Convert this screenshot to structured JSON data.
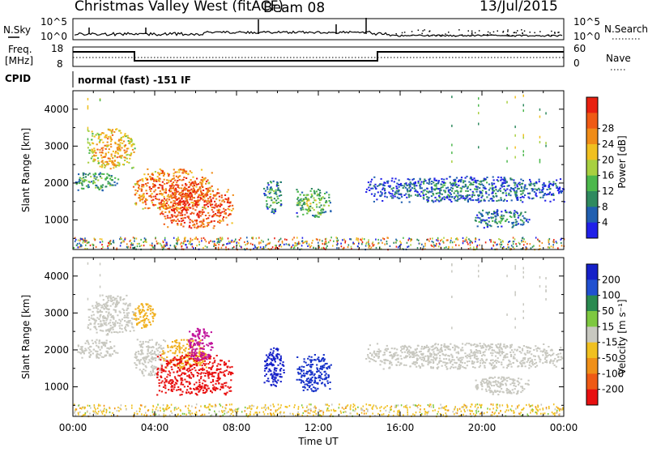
{
  "header": {
    "station": "Christmas Valley West (fitACF)",
    "beam": "Beam 08",
    "date": "13/Jul/2015"
  },
  "noise_panel": {
    "left_label": "N.Sky",
    "right_label": "N.Search",
    "left_ticks": [
      "10^5",
      "10^0"
    ],
    "right_ticks": [
      "10^5",
      "10^0"
    ]
  },
  "freq_panel": {
    "left_label_top": "Freq.",
    "left_label_bottom": "[MHz]",
    "left_ticks": [
      "18",
      "8"
    ],
    "right_label": "Nave",
    "right_ticks": [
      "60",
      "0"
    ]
  },
  "cpid_panel": {
    "label": "CPID",
    "text": "normal (fast) -151 IF"
  },
  "chart_data": [
    {
      "type": "heatmap",
      "quantity": "power",
      "ylabel": "Slant Range [km]",
      "ylim": [
        200,
        4500
      ],
      "yticks": [
        "1000",
        "2000",
        "3000",
        "4000"
      ],
      "xlim_hours": [
        0,
        24
      ],
      "colorbar_label": "Power [dB]",
      "colorbar_ticks": [
        "4",
        "8",
        "12",
        "16",
        "20",
        "24",
        "28"
      ],
      "colorbar_colors": [
        "#2020e8",
        "#205fb0",
        "#2f8a5f",
        "#4cb84c",
        "#a8d040",
        "#f0c020",
        "#f08c18",
        "#ef5a14",
        "#e82010"
      ],
      "echo_regions": [
        {
          "t0": 0.7,
          "t1": 3.0,
          "r0": 2400,
          "r1": 3500,
          "level": 0.55
        },
        {
          "t0": 0.1,
          "t1": 2.2,
          "r0": 1800,
          "r1": 2300,
          "level": 0.25
        },
        {
          "t0": 2.9,
          "t1": 6.8,
          "r0": 1300,
          "r1": 2400,
          "level": 0.7
        },
        {
          "t0": 4.2,
          "t1": 7.8,
          "r0": 800,
          "r1": 1900,
          "level": 0.8
        },
        {
          "t0": 9.3,
          "t1": 10.2,
          "r0": 1200,
          "r1": 2100,
          "level": 0.2
        },
        {
          "t0": 10.9,
          "t1": 12.6,
          "r0": 1100,
          "r1": 1900,
          "level": 0.3
        },
        {
          "t0": 14.3,
          "t1": 24.0,
          "r0": 1500,
          "r1": 2200,
          "level": 0.1
        },
        {
          "t0": 19.6,
          "t1": 22.3,
          "r0": 800,
          "r1": 1300,
          "level": 0.15
        }
      ]
    },
    {
      "type": "heatmap",
      "quantity": "velocity",
      "ylabel": "Slant Range [km]",
      "ylim": [
        200,
        4500
      ],
      "yticks": [
        "1000",
        "2000",
        "3000",
        "4000"
      ],
      "xlabel": "Time UT",
      "xlim_hours": [
        0,
        24
      ],
      "xticks": [
        "00:00",
        "04:00",
        "08:00",
        "12:00",
        "16:00",
        "20:00",
        "00:00"
      ],
      "colorbar_label": "Velocity [m s⁻¹]",
      "colorbar_ticks": [
        "200",
        "100",
        "50",
        "15",
        "-15",
        "-50",
        "-100",
        "-200"
      ],
      "colorbar_colors": [
        "#1520c8",
        "#2050d0",
        "#2a8a50",
        "#7ec840",
        "#c8c8c0",
        "#f0c020",
        "#f09018",
        "#ef5a14",
        "#e81010"
      ],
      "echo_regions": [
        {
          "t0": 0.7,
          "t1": 3.0,
          "r0": 2400,
          "r1": 3500,
          "color": "#c8c8c0"
        },
        {
          "t0": 0.1,
          "t1": 2.2,
          "r0": 1800,
          "r1": 2300,
          "color": "#c8c8c0"
        },
        {
          "t0": 2.9,
          "t1": 4.0,
          "r0": 2600,
          "r1": 3300,
          "color": "#f0b020"
        },
        {
          "t0": 2.9,
          "t1": 4.5,
          "r0": 1300,
          "r1": 2300,
          "color": "#c8c8c0"
        },
        {
          "t0": 4.3,
          "t1": 6.5,
          "r0": 1500,
          "r1": 2300,
          "color": "#f0b020"
        },
        {
          "t0": 4.0,
          "t1": 7.8,
          "r0": 800,
          "r1": 1900,
          "color": "#e81010"
        },
        {
          "t0": 5.6,
          "t1": 6.8,
          "r0": 1700,
          "r1": 2600,
          "color": "#c0109a"
        },
        {
          "t0": 9.3,
          "t1": 10.3,
          "r0": 1000,
          "r1": 2100,
          "color": "#1520c8"
        },
        {
          "t0": 10.9,
          "t1": 12.6,
          "r0": 900,
          "r1": 1900,
          "color": "#1530c8"
        },
        {
          "t0": 14.3,
          "t1": 24.0,
          "r0": 1500,
          "r1": 2200,
          "color": "#c8c8c0"
        },
        {
          "t0": 19.6,
          "t1": 22.3,
          "r0": 800,
          "r1": 1300,
          "color": "#c8c8c0"
        }
      ]
    }
  ]
}
